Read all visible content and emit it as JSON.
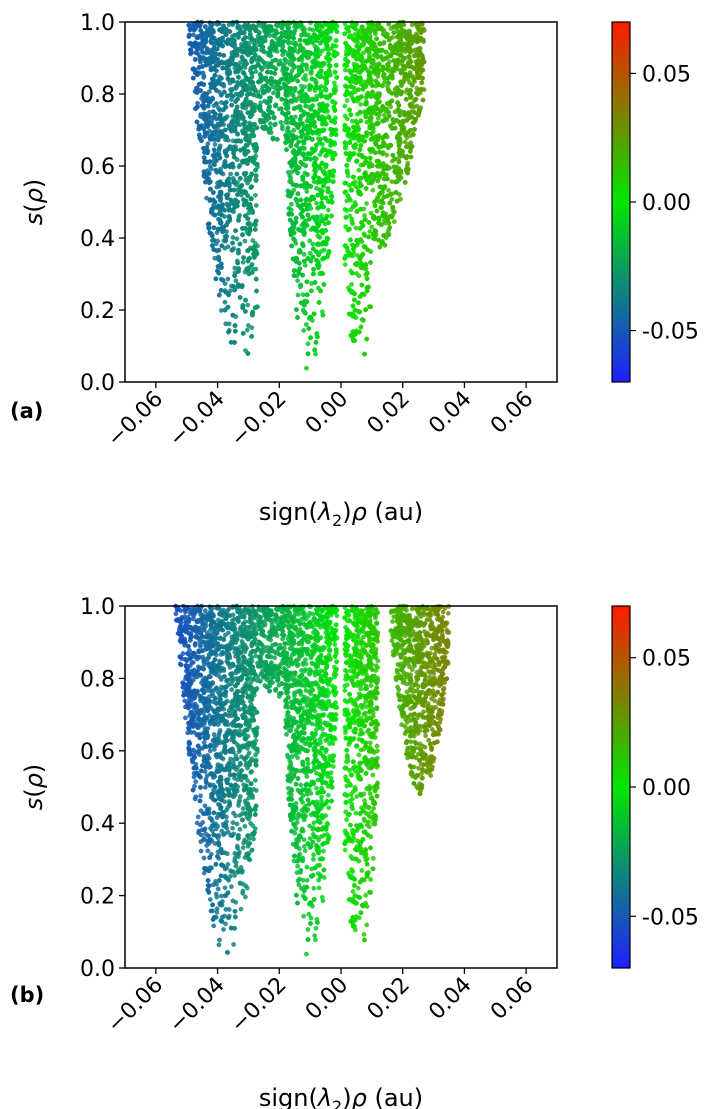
{
  "colors": {
    "negative": "#1f1fff",
    "zero": "#00e600",
    "positive": "#ff1a00",
    "axis": "#000000",
    "background": "#ffffff"
  },
  "chart_data": [
    {
      "type": "scatter",
      "panel_label": "(a)",
      "xlabel_parts": {
        "pre": "sign(",
        "lambda": "λ",
        "sub": "2",
        "post": ")",
        "rho": "ρ",
        "unit": " (au)"
      },
      "ylabel_parts": {
        "s": "s(",
        "rho": "ρ",
        "close": ")"
      },
      "xlim": [
        -0.07,
        0.07
      ],
      "ylim": [
        0.0,
        1.0
      ],
      "x_ticks": [
        "-0.06",
        "-0.04",
        "-0.02",
        "0.00",
        "0.02",
        "0.04",
        "0.06"
      ],
      "x_tick_values": [
        -0.06,
        -0.04,
        -0.02,
        0.0,
        0.02,
        0.04,
        0.06
      ],
      "y_ticks": [
        "0.0",
        "0.2",
        "0.4",
        "0.6",
        "0.8",
        "1.0"
      ],
      "y_tick_values": [
        0.0,
        0.2,
        0.4,
        0.6,
        0.8,
        1.0
      ],
      "colorbar": {
        "range": [
          -0.07,
          0.07
        ],
        "ticks": [
          "-0.05",
          "0.00",
          "0.05"
        ],
        "tick_values": [
          -0.05,
          0.0,
          0.05
        ]
      },
      "series_shape": {
        "left_branch_min_s": [
          -0.033,
          0.03
        ],
        "left_upper_wing": [
          -0.07,
          0.9
        ],
        "left_lower_wing": [
          -0.063,
          0.7
        ],
        "central_left_lobe_min_s": [
          -0.01,
          0.01
        ],
        "central_right_lobe_min_s": [
          0.004,
          0.02
        ],
        "right_edge_max_x": [
          0.027,
          0.85
        ],
        "gap_at_x": 0.0
      }
    },
    {
      "type": "scatter",
      "panel_label": "(b)",
      "xlabel_parts": {
        "pre": "sign(",
        "lambda": "λ",
        "sub": "2",
        "post": ")",
        "rho": "ρ",
        "unit": " (au)"
      },
      "ylabel_parts": {
        "s": "s(",
        "rho": "ρ",
        "close": ")"
      },
      "xlim": [
        -0.07,
        0.07
      ],
      "ylim": [
        0.0,
        1.0
      ],
      "x_ticks": [
        "-0.06",
        "-0.04",
        "-0.02",
        "0.00",
        "0.02",
        "0.04",
        "0.06"
      ],
      "x_tick_values": [
        -0.06,
        -0.04,
        -0.02,
        0.0,
        0.02,
        0.04,
        0.06
      ],
      "y_ticks": [
        "0.0",
        "0.2",
        "0.4",
        "0.6",
        "0.8",
        "1.0"
      ],
      "y_tick_values": [
        0.0,
        0.2,
        0.4,
        0.6,
        0.8,
        1.0
      ],
      "colorbar": {
        "range": [
          -0.07,
          0.07
        ],
        "ticks": [
          "-0.05",
          "0.00",
          "0.05"
        ],
        "tick_values": [
          -0.05,
          0.0,
          0.05
        ]
      },
      "series_shape": {
        "left_branch_min_s": [
          -0.037,
          0.02
        ],
        "left_upper_wing": [
          -0.07,
          0.88
        ],
        "left_lower_wing": [
          -0.07,
          0.7
        ],
        "central_left_lobe_min_s": [
          -0.012,
          0.01
        ],
        "central_right_lobe_min_s": [
          0.004,
          0.01
        ],
        "right_lobe_min_s": [
          0.026,
          0.48
        ],
        "right_edge_max_x": [
          0.035,
          0.88
        ],
        "gap_at_x": 0.0
      }
    }
  ]
}
